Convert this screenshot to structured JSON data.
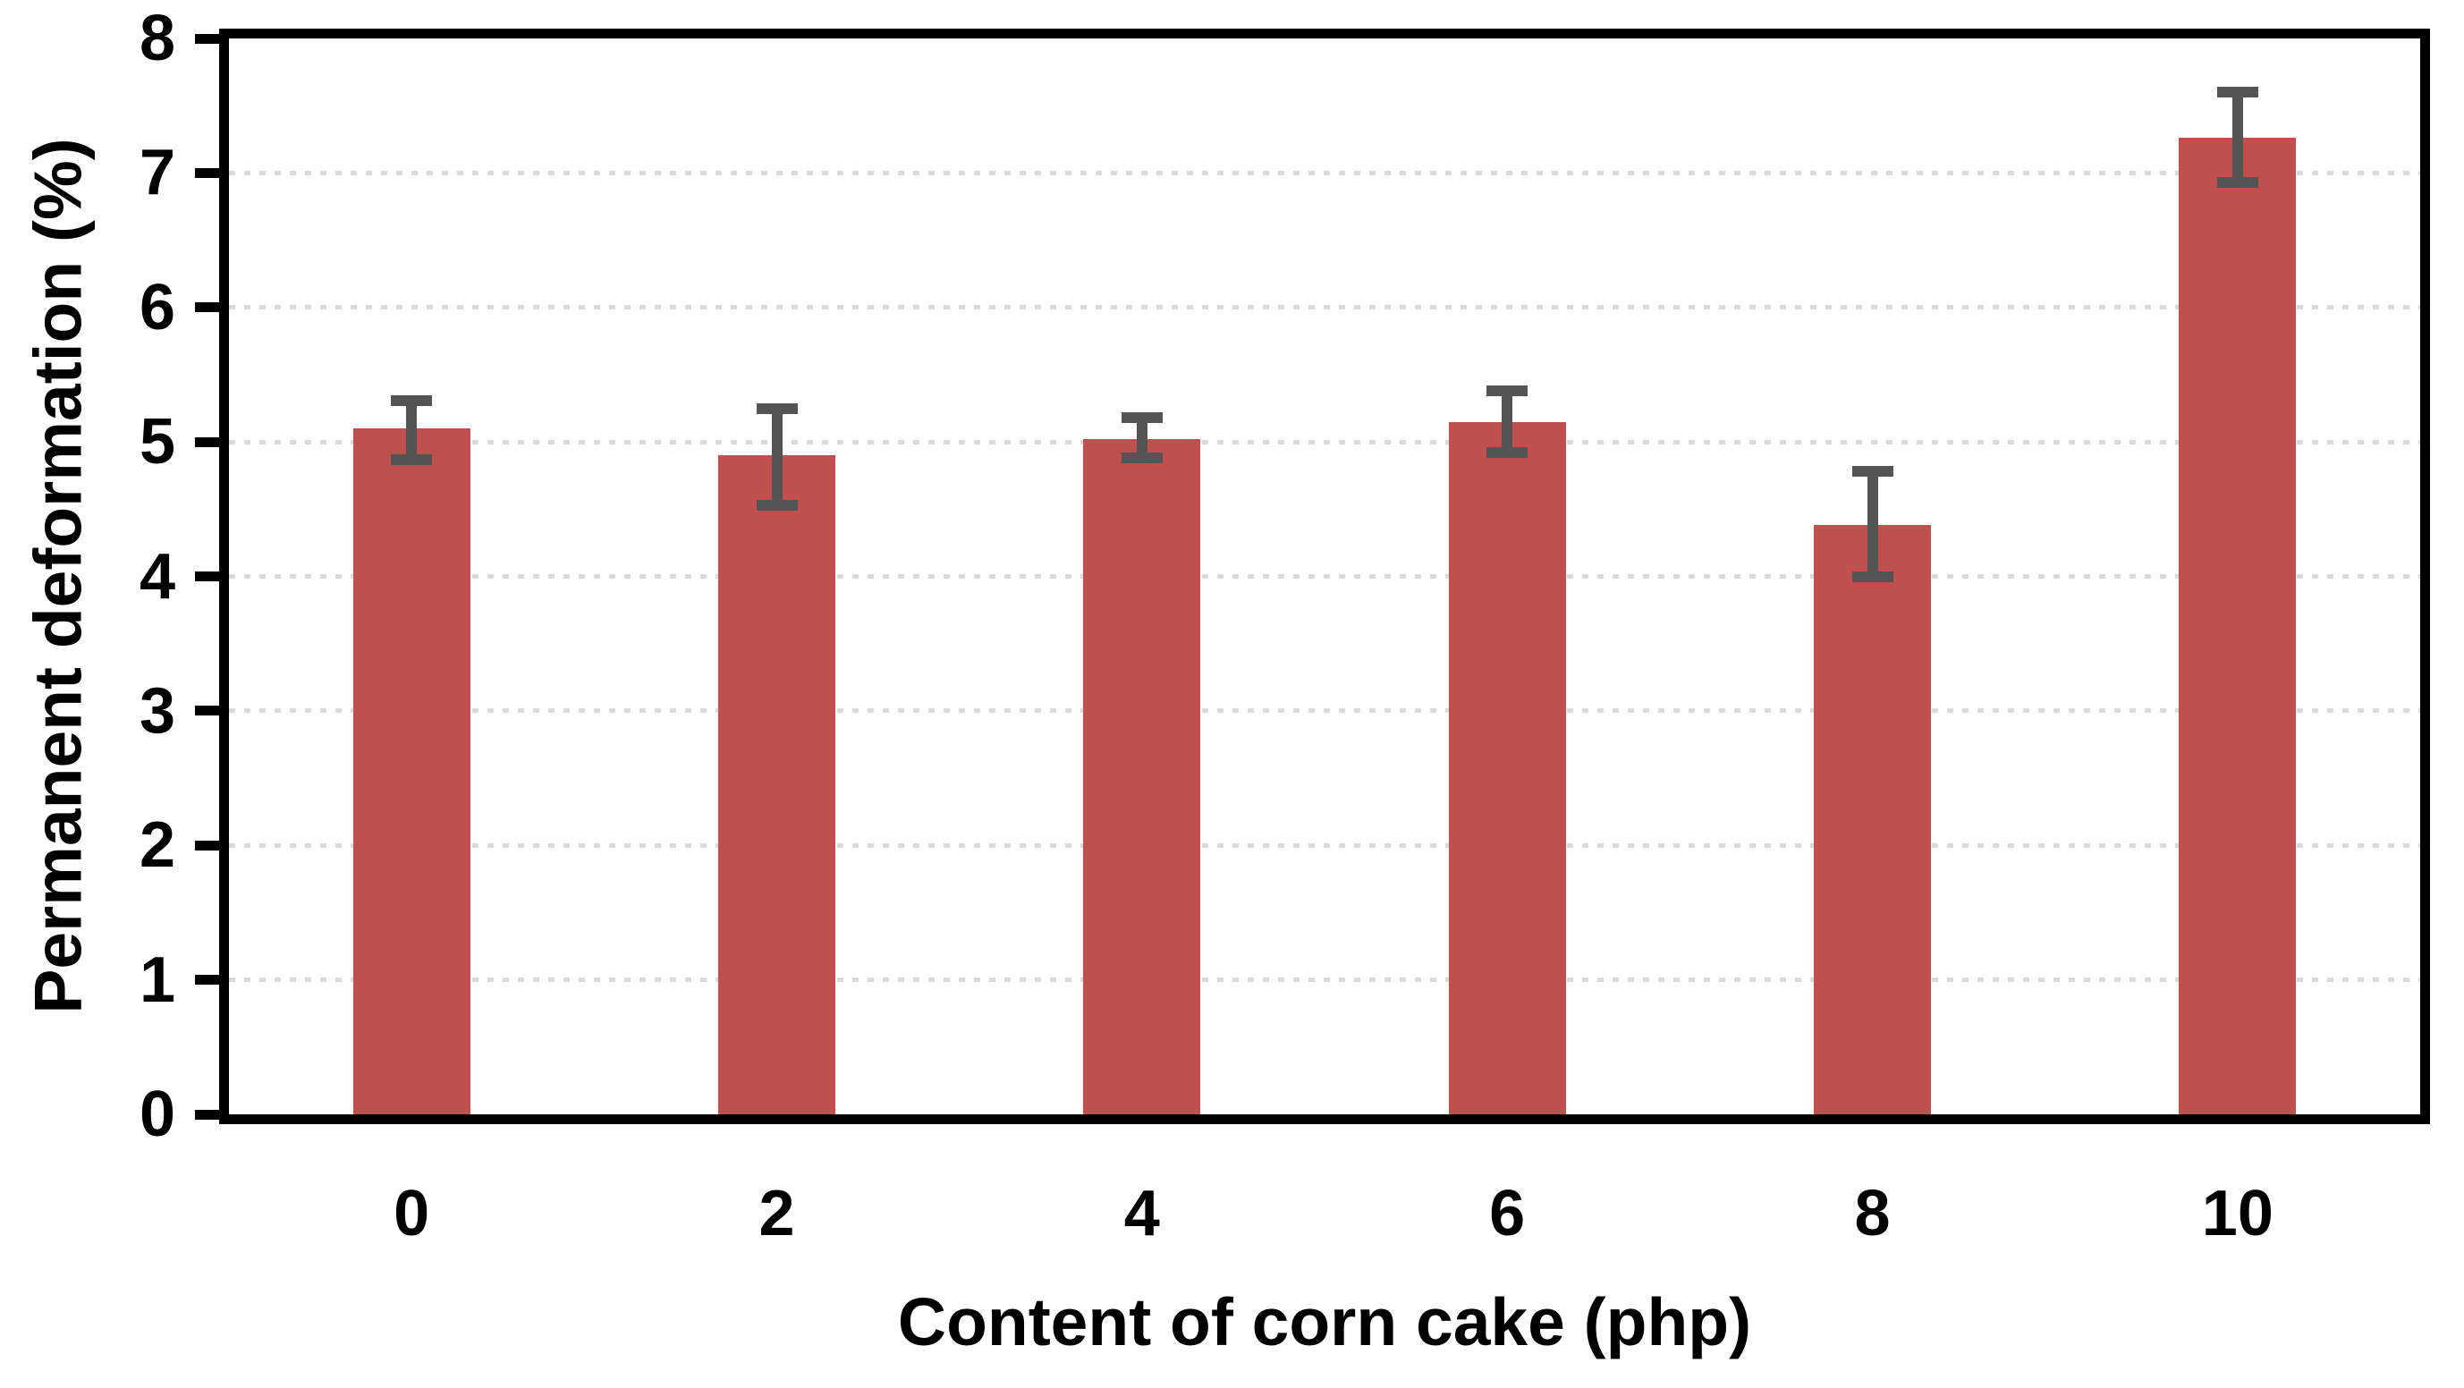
{
  "chart_data": {
    "type": "bar",
    "title": "",
    "xlabel": "Content of corn cake (php)",
    "ylabel": "Permanent deformation (%)",
    "categories": [
      "0",
      "2",
      "4",
      "6",
      "8",
      "10"
    ],
    "series": [
      {
        "name": "Permanent deformation",
        "values": [
          5.1,
          4.9,
          5.02,
          5.15,
          4.38,
          7.26
        ],
        "error_low": [
          4.87,
          4.53,
          4.88,
          4.92,
          4.0,
          6.93
        ],
        "error_high": [
          5.31,
          5.25,
          5.18,
          5.38,
          4.78,
          7.6
        ]
      }
    ],
    "ylim": [
      0,
      8
    ],
    "y_ticks": [
      "0",
      "1",
      "2",
      "3",
      "4",
      "5",
      "6",
      "7",
      "8"
    ],
    "gridline_values": [
      1,
      2,
      3,
      4,
      5,
      6,
      7
    ],
    "legend": "none",
    "layout_hints": {
      "grid": "horizontal-dotted",
      "plot_border": "full-box",
      "error_bars": "vertical-with-caps"
    },
    "colors": {
      "bar": "#C0504D",
      "error_bar": "#545454",
      "gridline": "#DADADA",
      "axis": "#000000",
      "background": "#FFFFFF"
    }
  }
}
